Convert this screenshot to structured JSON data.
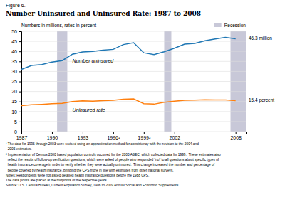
{
  "chart_data": {
    "type": "line",
    "figure_label": "Figure 6.",
    "title": "Number Uninsured and Uninsured Rate: 1987 to 2008",
    "subtitle": "Numbers in millions, rates in percent",
    "x": [
      1987,
      1988,
      1989,
      1990,
      1991,
      1992,
      1993,
      1994,
      1995,
      1996,
      1997,
      1998,
      1999,
      2000,
      2001,
      2002,
      2003,
      2004,
      2005,
      2006,
      2007,
      2008
    ],
    "series": [
      {
        "name": "Number uninsured",
        "values": [
          31.0,
          33.0,
          33.4,
          34.7,
          35.4,
          38.6,
          39.7,
          40.0,
          40.6,
          41.0,
          43.4,
          44.3,
          39.3,
          38.4,
          39.8,
          41.6,
          43.6,
          44.0,
          45.3,
          46.2,
          47.0,
          46.3
        ]
      },
      {
        "name": "Uninsured rate",
        "values": [
          12.9,
          13.4,
          13.6,
          13.9,
          14.1,
          15.0,
          15.3,
          15.2,
          15.4,
          15.6,
          16.1,
          16.3,
          13.9,
          13.7,
          14.6,
          15.2,
          15.6,
          15.7,
          15.9,
          15.8,
          15.8,
          15.4
        ]
      }
    ],
    "annotations": [
      "46.3 million",
      "15.4 percent"
    ],
    "recession_bands": [
      [
        1990.5,
        1991.5
      ],
      [
        2001.0,
        2001.7
      ],
      [
        2007.5,
        2009.0
      ]
    ],
    "recession_label": "Recession",
    "recession_color": "#c8c8d8",
    "legend": "top-right",
    "xlim": [
      1987,
      2009
    ],
    "xticks": [
      1987,
      1990,
      1993,
      {
        "value": 1996,
        "label": "1996¹"
      },
      {
        "value": 1999,
        "label": "1999²"
      },
      2002,
      2008
    ],
    "ylim": [
      0,
      50
    ],
    "yticks": [
      0,
      5,
      10,
      15,
      20,
      25,
      30,
      35,
      40,
      45,
      50
    ],
    "grid": true,
    "notes": [
      "¹ The data for 1996 through 2003 were revised using an approximation method for consistency with the revision to the 2004 and",
      "  2005 estimates.",
      "² Implementation of Census 2000 based population controls occurred for the 2000 ASEC, which collected data for 1999.  These estimates also",
      "  reflect the results of follow-up verification questions, which were asked of people who responded “no” to all questions about specific types of",
      "  health insurance coverage in order to verify whether they were actually uninsured.  This change increased the number and percentage of",
      "  people covered by health insurance, bringing the CPS more in line with estimates from other national surveys.",
      "Notes: Respondents were not asked detailed health insurance questions before the 1988 CPS.",
      "The data points are placed at the midpoints of the respective years.",
      "Source: U.S. Census Bureau, Current Population Survey, 1988 to 2009 Annual Social and Economic Supplements."
    ]
  }
}
